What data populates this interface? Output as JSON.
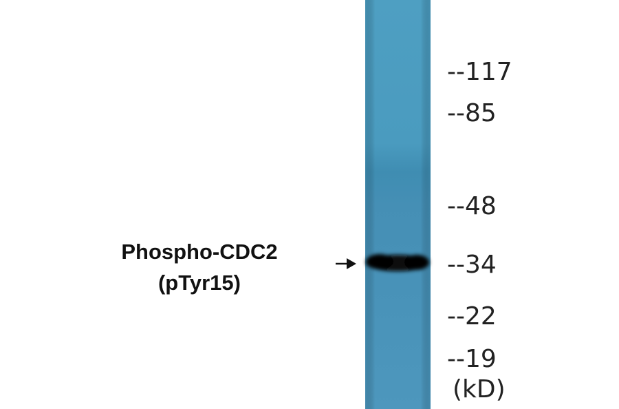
{
  "label": {
    "lines": [
      "Phospho-CDC2",
      "(pTyr15)"
    ]
  },
  "markers": [
    "--117",
    "--85",
    "--48",
    "--34",
    "--22",
    "--19"
  ],
  "unit": "(kD)"
}
